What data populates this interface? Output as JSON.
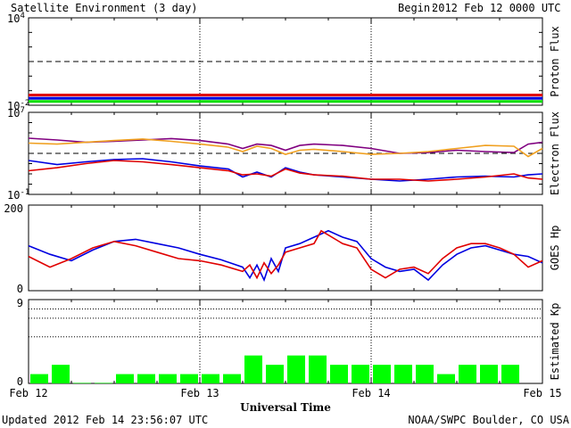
{
  "header": {
    "title": "Satellite Environment (3 day)",
    "begin_label": "Begin:",
    "begin_value": "2012 Feb 12 0000 UTC"
  },
  "footer": {
    "updated": "Updated 2012 Feb 14 23:56:07 UTC",
    "credit": "NOAA/SWPC Boulder, CO USA"
  },
  "colors": {
    "red": "#e00000",
    "blue": "#0000e0",
    "green": "#00e000",
    "purple": "#800080",
    "orange": "#f0a020",
    "kp_bar": "#00ff00"
  },
  "chart_data": [
    {
      "type": "line",
      "panel": "proton",
      "ylabel": "Proton Flux",
      "yscale": "log",
      "ylim": [
        0.01,
        10000
      ],
      "y_ticks": [
        {
          "base": "10",
          "exp": "4",
          "value": 10000
        },
        {
          "base": "10",
          "exp": "-2",
          "value": 0.01
        }
      ],
      "threshold": 10,
      "xlim": [
        0,
        72
      ],
      "series": [
        {
          "color": "red",
          "x": [
            0,
            6,
            12,
            18,
            24,
            30,
            36,
            42,
            48,
            54,
            60,
            66,
            72
          ],
          "y": [
            0.05,
            0.05,
            0.05,
            0.05,
            0.05,
            0.05,
            0.05,
            0.05,
            0.05,
            0.05,
            0.05,
            0.05,
            0.05
          ]
        },
        {
          "color": "blue",
          "x": [
            0,
            6,
            12,
            18,
            24,
            30,
            36,
            42,
            48,
            54,
            60,
            66,
            72
          ],
          "y": [
            0.03,
            0.03,
            0.03,
            0.03,
            0.03,
            0.03,
            0.03,
            0.03,
            0.03,
            0.03,
            0.03,
            0.03,
            0.03
          ]
        },
        {
          "color": "green",
          "x": [
            0,
            6,
            12,
            18,
            24,
            30,
            36,
            42,
            48,
            54,
            60,
            66,
            72
          ],
          "y": [
            0.018,
            0.018,
            0.018,
            0.018,
            0.018,
            0.018,
            0.018,
            0.018,
            0.018,
            0.018,
            0.018,
            0.018,
            0.018
          ]
        }
      ]
    },
    {
      "type": "line",
      "panel": "electron",
      "ylabel": "Electron Flux",
      "yscale": "log",
      "ylim": [
        0.1,
        10000000
      ],
      "y_ticks": [
        {
          "base": "10",
          "exp": "7",
          "value": 10000000
        },
        {
          "base": "10",
          "exp": "-1",
          "value": 0.1
        }
      ],
      "threshold": 1000,
      "xlim": [
        0,
        72
      ],
      "series": [
        {
          "color": "purple",
          "x": [
            0,
            4,
            8,
            12,
            16,
            20,
            24,
            28,
            30,
            32,
            34,
            36,
            38,
            40,
            44,
            48,
            52,
            56,
            60,
            64,
            68,
            70,
            72
          ],
          "y": [
            30000,
            20000,
            12000,
            15000,
            20000,
            28000,
            18000,
            8000,
            3000,
            8000,
            6000,
            2000,
            6000,
            8000,
            6000,
            3000,
            1000,
            1200,
            2000,
            1500,
            1200,
            8000,
            12000
          ]
        },
        {
          "color": "orange",
          "x": [
            0,
            4,
            8,
            12,
            16,
            20,
            24,
            28,
            30,
            32,
            34,
            36,
            38,
            40,
            44,
            48,
            52,
            56,
            60,
            64,
            68,
            70,
            72
          ],
          "y": [
            10000,
            8000,
            12000,
            18000,
            25000,
            15000,
            8000,
            4000,
            1500,
            5000,
            3000,
            800,
            2000,
            2500,
            1500,
            800,
            1000,
            1500,
            3000,
            6000,
            5000,
            500,
            3000
          ]
        },
        {
          "color": "blue",
          "x": [
            0,
            4,
            8,
            12,
            16,
            20,
            24,
            28,
            30,
            32,
            34,
            36,
            38,
            40,
            44,
            48,
            52,
            56,
            60,
            64,
            68,
            70,
            72
          ],
          "y": [
            200,
            80,
            150,
            250,
            300,
            150,
            60,
            30,
            5,
            15,
            5,
            40,
            15,
            8,
            5,
            3,
            2,
            3,
            5,
            6,
            5,
            8,
            10
          ]
        },
        {
          "color": "red",
          "x": [
            0,
            4,
            8,
            12,
            16,
            20,
            24,
            28,
            30,
            32,
            34,
            36,
            38,
            40,
            44,
            48,
            52,
            56,
            60,
            64,
            68,
            70,
            72
          ],
          "y": [
            20,
            40,
            100,
            200,
            150,
            80,
            40,
            20,
            8,
            10,
            6,
            30,
            12,
            8,
            6,
            3,
            3,
            2,
            3,
            5,
            10,
            4,
            3
          ]
        }
      ]
    },
    {
      "type": "line",
      "panel": "goes-hp",
      "ylabel": "GOES Hp",
      "ylim": [
        0,
        200
      ],
      "y_ticks": [
        "200",
        "0"
      ],
      "xlim": [
        0,
        72
      ],
      "series": [
        {
          "color": "blue",
          "x": [
            0,
            3,
            6,
            9,
            12,
            15,
            18,
            21,
            24,
            27,
            30,
            31,
            32,
            33,
            34,
            35,
            36,
            38,
            40,
            42,
            44,
            46,
            48,
            50,
            52,
            54,
            56,
            58,
            60,
            62,
            64,
            66,
            68,
            70,
            72
          ],
          "y": [
            105,
            85,
            70,
            95,
            115,
            120,
            110,
            100,
            85,
            72,
            55,
            30,
            60,
            25,
            75,
            45,
            100,
            110,
            125,
            140,
            125,
            115,
            75,
            55,
            45,
            50,
            25,
            60,
            85,
            100,
            105,
            95,
            85,
            80,
            65
          ]
        },
        {
          "color": "red",
          "x": [
            0,
            3,
            6,
            9,
            12,
            15,
            18,
            21,
            24,
            27,
            30,
            31,
            32,
            33,
            34,
            35,
            36,
            38,
            40,
            41,
            42,
            44,
            46,
            48,
            50,
            52,
            54,
            56,
            58,
            60,
            62,
            64,
            66,
            68,
            70,
            72
          ],
          "y": [
            80,
            55,
            75,
            100,
            115,
            105,
            90,
            75,
            70,
            60,
            45,
            60,
            30,
            65,
            40,
            60,
            90,
            100,
            110,
            140,
            130,
            110,
            100,
            50,
            30,
            50,
            55,
            40,
            75,
            100,
            110,
            110,
            100,
            85,
            55,
            70
          ]
        }
      ]
    },
    {
      "type": "bar",
      "panel": "kp",
      "ylabel": "Estimated Kp",
      "ylim": [
        0,
        9
      ],
      "y_ticks": [
        "9",
        "0"
      ],
      "grid_levels": [
        5,
        7,
        8,
        9
      ],
      "values": [
        1,
        2,
        0,
        0,
        1,
        1,
        1,
        1,
        1,
        1,
        3,
        2,
        3,
        3,
        2,
        2,
        2,
        2,
        2,
        1,
        2,
        2,
        2
      ],
      "x_ticks": [
        {
          "x": 0,
          "label": "Feb 12"
        },
        {
          "x": 24,
          "label": "Feb 13"
        },
        {
          "x": 48,
          "label": "Feb 14"
        },
        {
          "x": 72,
          "label": "Feb 15"
        }
      ],
      "xlabel": "Universal Time"
    }
  ]
}
